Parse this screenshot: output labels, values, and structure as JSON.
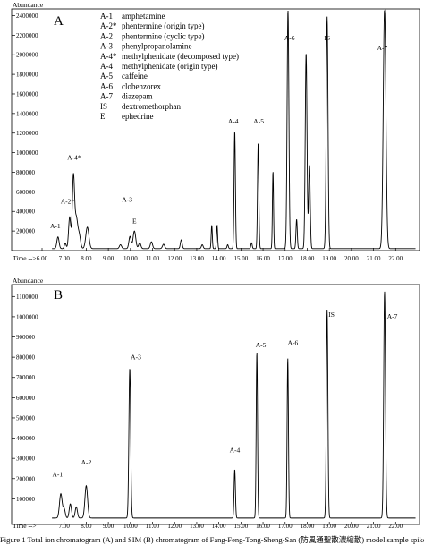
{
  "figure": {
    "caption": "Figure 1 Total ion chromatogram (A) and SIM (B) chromatogram of Fang-Feng-Tong-Sheng-San (防風通聖散濃縮散) model sample spiked with standards",
    "line_color": "#000000"
  },
  "chart_data": [
    {
      "type": "line",
      "panel_label": "A",
      "ylabel": "Abundance",
      "xlabel": "Time -->",
      "xlim": [
        6.0,
        23.0
      ],
      "ylim": [
        0,
        2450000
      ],
      "x_ticks": [
        6,
        7,
        8,
        9,
        10,
        11,
        12,
        13,
        14,
        15,
        16,
        17,
        18,
        19,
        20,
        21,
        22
      ],
      "x_tick_labels": [
        "6.00",
        "7.00",
        "8.00",
        "9.00",
        "10.00",
        "11.00",
        "12.00",
        "13.00",
        "14.00",
        "15.00",
        "16.00",
        "17.00",
        "18.00",
        "19.00",
        "20.00",
        "21.00",
        "22.00"
      ],
      "y_ticks": [
        200000,
        400000,
        600000,
        800000,
        1000000,
        1200000,
        1400000,
        1600000,
        1800000,
        2000000,
        2200000,
        2400000
      ],
      "y_tick_labels": [
        "200000",
        "400000",
        "600000",
        "800000",
        "1000000",
        "1200000",
        "1400000",
        "1600000",
        "1800000",
        "2000000",
        "2200000",
        "2400000"
      ],
      "baseline": 20000,
      "peaks": [
        {
          "rt": 6.72,
          "height": 120000,
          "width": 0.05
        },
        {
          "rt": 7.05,
          "height": 55000,
          "width": 0.04
        },
        {
          "rt": 7.25,
          "height": 320000,
          "width": 0.05
        },
        {
          "rt": 7.42,
          "height": 740000,
          "width": 0.05
        },
        {
          "rt": 7.55,
          "height": 300000,
          "width": 0.06
        },
        {
          "rt": 7.68,
          "height": 140000,
          "width": 0.06
        },
        {
          "rt": 8.05,
          "height": 220000,
          "width": 0.07
        },
        {
          "rt": 9.55,
          "height": 40000,
          "width": 0.05
        },
        {
          "rt": 9.98,
          "height": 125000,
          "width": 0.05
        },
        {
          "rt": 10.18,
          "height": 180000,
          "width": 0.06
        },
        {
          "rt": 10.42,
          "height": 60000,
          "width": 0.05
        },
        {
          "rt": 10.95,
          "height": 70000,
          "width": 0.05
        },
        {
          "rt": 11.5,
          "height": 45000,
          "width": 0.05
        },
        {
          "rt": 12.3,
          "height": 90000,
          "width": 0.04
        },
        {
          "rt": 13.25,
          "height": 40000,
          "width": 0.04
        },
        {
          "rt": 13.68,
          "height": 240000,
          "width": 0.025
        },
        {
          "rt": 13.92,
          "height": 240000,
          "width": 0.025
        },
        {
          "rt": 14.4,
          "height": 40000,
          "width": 0.03
        },
        {
          "rt": 14.72,
          "height": 1200000,
          "width": 0.03
        },
        {
          "rt": 15.48,
          "height": 60000,
          "width": 0.03
        },
        {
          "rt": 15.78,
          "height": 1080000,
          "width": 0.03
        },
        {
          "rt": 16.45,
          "height": 790000,
          "width": 0.025
        },
        {
          "rt": 17.13,
          "height": 2450000,
          "width": 0.04
        },
        {
          "rt": 17.52,
          "height": 300000,
          "width": 0.03
        },
        {
          "rt": 17.95,
          "height": 2000000,
          "width": 0.04
        },
        {
          "rt": 18.1,
          "height": 850000,
          "width": 0.035
        },
        {
          "rt": 18.9,
          "height": 2370000,
          "width": 0.04
        },
        {
          "rt": 21.5,
          "height": 2450000,
          "width": 0.06
        }
      ],
      "peak_labels": [
        {
          "text": "A-1",
          "rt": 6.6,
          "abundance": 230000
        },
        {
          "text": "A-2*",
          "rt": 7.15,
          "abundance": 480000
        },
        {
          "text": "A-4*",
          "rt": 7.45,
          "abundance": 930000
        },
        {
          "text": "A-3",
          "rt": 9.85,
          "abundance": 500000
        },
        {
          "text": "E",
          "rt": 10.18,
          "abundance": 280000
        },
        {
          "text": "A-4",
          "rt": 14.65,
          "abundance": 1300000
        },
        {
          "text": "A-5",
          "rt": 15.8,
          "abundance": 1300000
        },
        {
          "text": "A-6",
          "rt": 17.2,
          "abundance": 2150000
        },
        {
          "text": "IS",
          "rt": 18.9,
          "abundance": 2150000
        },
        {
          "text": "A-7",
          "rt": 21.4,
          "abundance": 2050000
        }
      ],
      "legend": [
        {
          "code": "A-1",
          "name": "amphetamine"
        },
        {
          "code": "A-2*",
          "name": "phentermine (origin type)"
        },
        {
          "code": "A-2",
          "name": "phentermine (cyclic type)"
        },
        {
          "code": "A-3",
          "name": "phenylpropanolamine"
        },
        {
          "code": "A-4*",
          "name": "methylphenidate (decomposed type)"
        },
        {
          "code": "A-4",
          "name": "methylphenidate (origin type)"
        },
        {
          "code": "A-5",
          "name": "caffeine"
        },
        {
          "code": "A-6",
          "name": "clobenzorex"
        },
        {
          "code": "A-7",
          "name": "diazepam"
        },
        {
          "code": "IS",
          "name": "dextromethorphan"
        },
        {
          "code": "E",
          "name": "ephedrine"
        }
      ]
    },
    {
      "type": "line",
      "panel_label": "B",
      "ylabel": "Abundance",
      "xlabel": "Time -->",
      "xlim": [
        6.0,
        23.0
      ],
      "ylim": [
        0,
        1150000
      ],
      "x_ticks": [
        7,
        8,
        9,
        10,
        11,
        12,
        13,
        14,
        15,
        16,
        17,
        18,
        19,
        20,
        21,
        22
      ],
      "x_tick_labels": [
        "7.00",
        "8.00",
        "9.00",
        "10.00",
        "11.00",
        "12.00",
        "13.00",
        "14.00",
        "15.00",
        "16.00",
        "17.00",
        "18.00",
        "19.00",
        "20.00",
        "21.00",
        "22.00"
      ],
      "y_ticks": [
        100000,
        200000,
        300000,
        400000,
        500000,
        600000,
        700000,
        800000,
        900000,
        1000000,
        1100000
      ],
      "y_tick_labels": [
        "100000",
        "200000",
        "300000",
        "400000",
        "500000",
        "600000",
        "700000",
        "800000",
        "900000",
        "1000000",
        "1100000"
      ],
      "baseline": 5000,
      "peaks": [
        {
          "rt": 6.85,
          "height": 120000,
          "width": 0.06
        },
        {
          "rt": 7.0,
          "height": 45000,
          "width": 0.05
        },
        {
          "rt": 7.28,
          "height": 70000,
          "width": 0.05
        },
        {
          "rt": 7.55,
          "height": 55000,
          "width": 0.05
        },
        {
          "rt": 8.0,
          "height": 160000,
          "width": 0.06
        },
        {
          "rt": 9.97,
          "height": 740000,
          "width": 0.04
        },
        {
          "rt": 14.72,
          "height": 240000,
          "width": 0.03
        },
        {
          "rt": 15.72,
          "height": 820000,
          "width": 0.03
        },
        {
          "rt": 17.12,
          "height": 790000,
          "width": 0.03
        },
        {
          "rt": 18.9,
          "height": 1030000,
          "width": 0.035
        },
        {
          "rt": 21.5,
          "height": 1120000,
          "width": 0.04
        }
      ],
      "peak_labels": [
        {
          "text": "A-1",
          "rt": 6.7,
          "abundance": 210000
        },
        {
          "text": "A-2",
          "rt": 8.0,
          "abundance": 270000
        },
        {
          "text": "A-3",
          "rt": 10.25,
          "abundance": 790000
        },
        {
          "text": "A-4",
          "rt": 14.72,
          "abundance": 330000
        },
        {
          "text": "A-5",
          "rt": 15.9,
          "abundance": 850000
        },
        {
          "text": "A-6",
          "rt": 17.35,
          "abundance": 860000
        },
        {
          "text": "IS",
          "rt": 19.1,
          "abundance": 1000000
        },
        {
          "text": "A-7",
          "rt": 21.85,
          "abundance": 990000
        }
      ],
      "legend": []
    }
  ]
}
